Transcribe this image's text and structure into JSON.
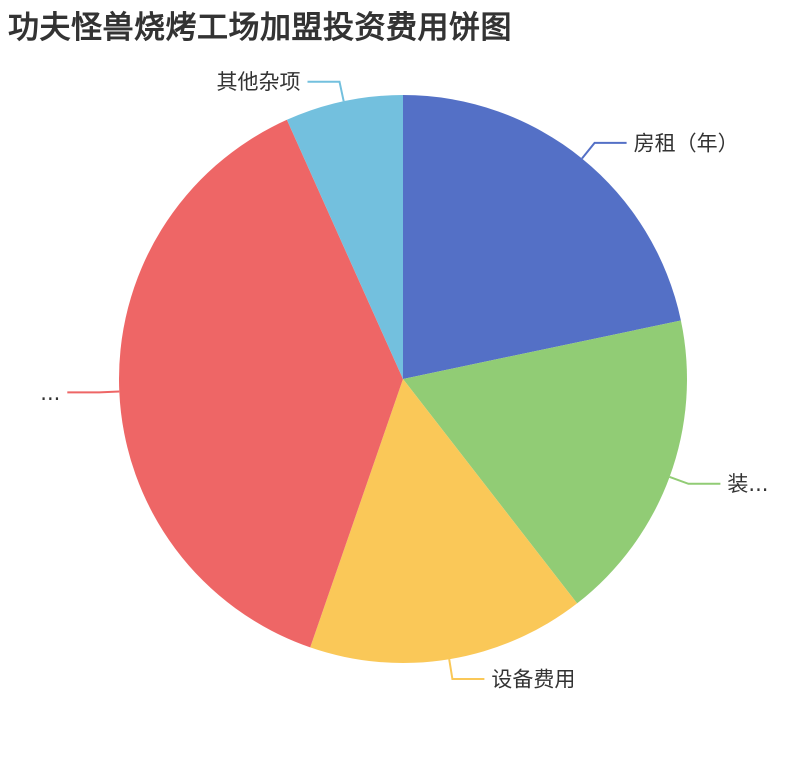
{
  "chart_data": {
    "type": "pie",
    "title": "功夫怪兽烧烤工场加盟投资费用饼图",
    "title_color": "#333333",
    "label_color": "#333333",
    "background": "#ffffff",
    "legend_position": "none",
    "start_angle": "12 o'clock",
    "direction": "clockwise",
    "label_layout": "outside-with-leader-lines",
    "slices": [
      {
        "label": "房租（年）",
        "value_pct": 21.7,
        "color": "#5470c6",
        "truncated": false
      },
      {
        "label": "装...",
        "value_pct": 17.8,
        "color": "#91cc75",
        "truncated": true
      },
      {
        "label": "设备费用",
        "value_pct": 15.8,
        "color": "#fac858",
        "truncated": false
      },
      {
        "label": "...",
        "value_pct": 38.0,
        "color": "#ee6666",
        "truncated": true
      },
      {
        "label": "其他杂项",
        "value_pct": 6.7,
        "color": "#73c0de",
        "truncated": false
      }
    ]
  }
}
